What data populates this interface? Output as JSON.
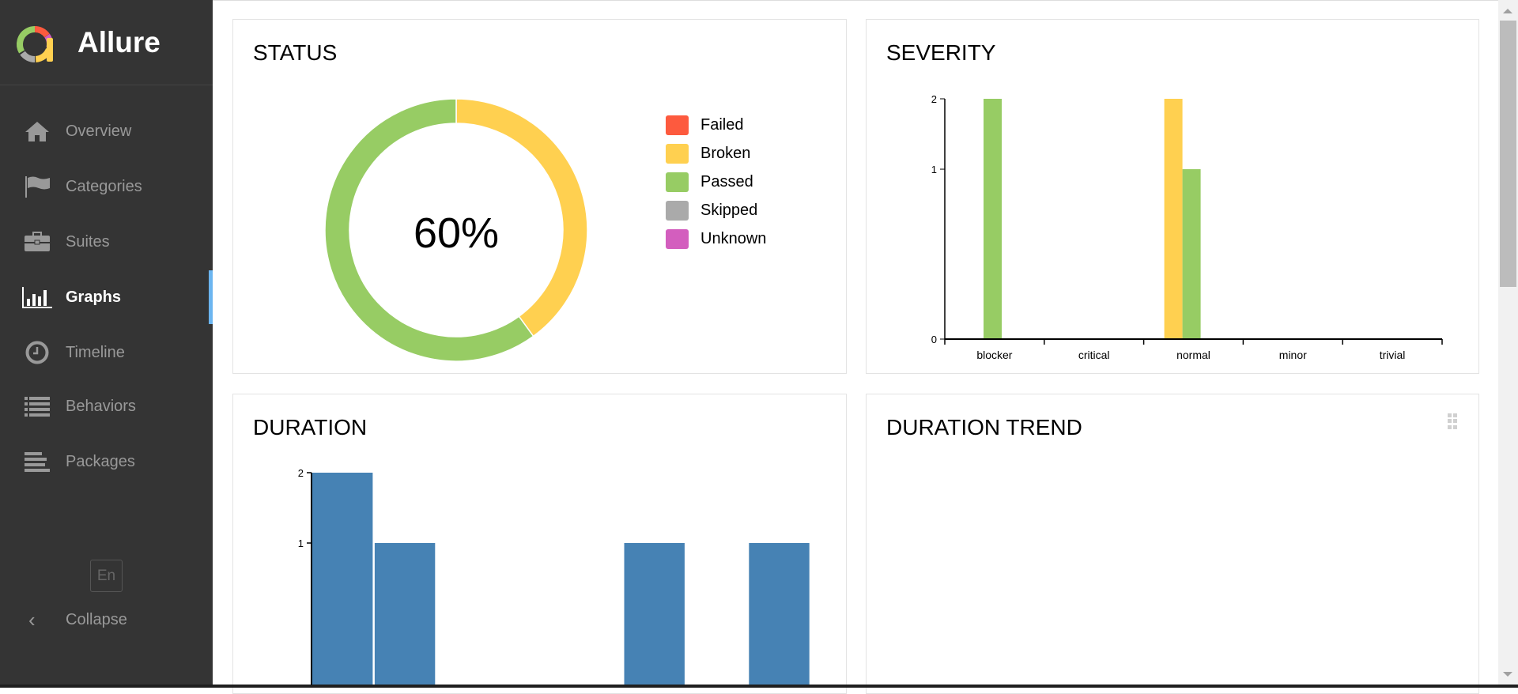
{
  "app": {
    "name": "Allure"
  },
  "sidebar": {
    "items": [
      {
        "label": "Overview",
        "icon": "home-icon"
      },
      {
        "label": "Categories",
        "icon": "flag-icon"
      },
      {
        "label": "Suites",
        "icon": "briefcase-icon"
      },
      {
        "label": "Graphs",
        "icon": "bar-chart-icon",
        "active": true
      },
      {
        "label": "Timeline",
        "icon": "clock-icon"
      },
      {
        "label": "Behaviors",
        "icon": "list-icon"
      },
      {
        "label": "Packages",
        "icon": "align-left-icon"
      }
    ],
    "language": "En",
    "collapse_label": "Collapse",
    "accent": "#6bb5f0"
  },
  "colors": {
    "failed": "#fd5a3e",
    "broken": "#ffd050",
    "passed": "#97cc64",
    "skipped": "#aaaaaa",
    "unknown": "#d35ebe",
    "duration": "#4682b4"
  },
  "cards": {
    "status": {
      "title": "STATUS"
    },
    "severity": {
      "title": "SEVERITY"
    },
    "duration": {
      "title": "DURATION"
    },
    "duration_trend": {
      "title": "DURATION TREND",
      "icon": "drag-handle-icon"
    }
  },
  "chart_data": [
    {
      "type": "pie",
      "title": "STATUS",
      "center_label": "60%",
      "legend": [
        "Failed",
        "Broken",
        "Passed",
        "Skipped",
        "Unknown"
      ],
      "legend_placement": "right",
      "slices": [
        {
          "name": "Failed",
          "value": 0
        },
        {
          "name": "Broken",
          "value": 2
        },
        {
          "name": "Passed",
          "value": 3
        },
        {
          "name": "Skipped",
          "value": 0
        },
        {
          "name": "Unknown",
          "value": 0
        }
      ]
    },
    {
      "type": "bar",
      "title": "SEVERITY",
      "categories": [
        "blocker",
        "critical",
        "normal",
        "minor",
        "trivial"
      ],
      "y_scale": "sqrt",
      "ylim": [
        0,
        2
      ],
      "yticks": [
        "0",
        "1",
        "2"
      ],
      "series": [
        {
          "name": "Failed",
          "values": [
            0,
            0,
            0,
            0,
            0
          ]
        },
        {
          "name": "Broken",
          "values": [
            0,
            0,
            2,
            0,
            0
          ]
        },
        {
          "name": "Passed",
          "values": [
            2,
            0,
            1,
            0,
            0
          ]
        },
        {
          "name": "Skipped",
          "values": [
            0,
            0,
            0,
            0,
            0
          ]
        },
        {
          "name": "Unknown",
          "values": [
            0,
            0,
            0,
            0,
            0
          ]
        }
      ]
    },
    {
      "type": "bar",
      "title": "DURATION",
      "y_scale": "sqrt",
      "ylim": [
        0,
        2
      ],
      "yticks": [
        "1",
        "2"
      ],
      "values": [
        2,
        1,
        0,
        0,
        0,
        1,
        0,
        1
      ]
    }
  ]
}
